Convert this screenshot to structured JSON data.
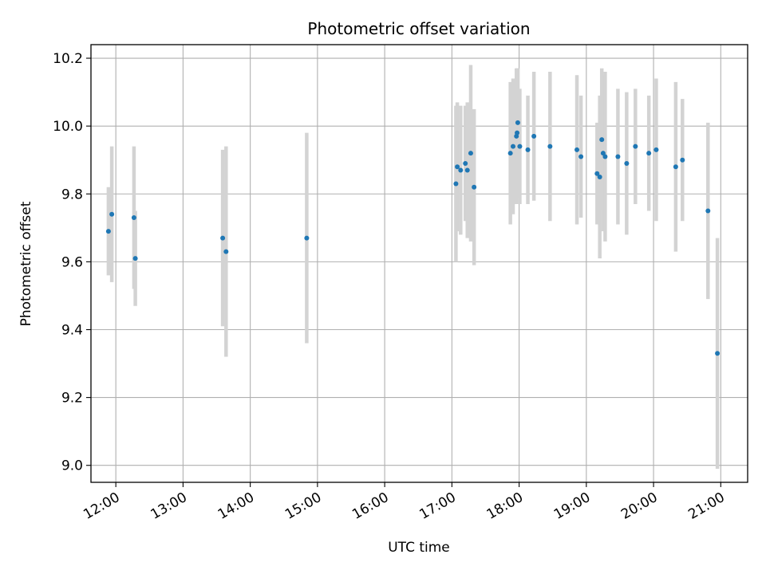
{
  "chart_data": {
    "type": "scatter",
    "title": "Photometric offset variation",
    "xlabel": "UTC time",
    "ylabel": "Photometric offset",
    "xlim": [
      11.63,
      21.4
    ],
    "ylim": [
      8.95,
      10.24
    ],
    "grid": true,
    "x_ticks": [
      {
        "value": 12,
        "label": "12:00"
      },
      {
        "value": 13,
        "label": "13:00"
      },
      {
        "value": 14,
        "label": "14:00"
      },
      {
        "value": 15,
        "label": "15:00"
      },
      {
        "value": 16,
        "label": "16:00"
      },
      {
        "value": 17,
        "label": "17:00"
      },
      {
        "value": 18,
        "label": "18:00"
      },
      {
        "value": 19,
        "label": "19:00"
      },
      {
        "value": 20,
        "label": "20:00"
      },
      {
        "value": 21,
        "label": "21:00"
      }
    ],
    "y_ticks": [
      {
        "value": 9.0,
        "label": "9.0"
      },
      {
        "value": 9.2,
        "label": "9.2"
      },
      {
        "value": 9.4,
        "label": "9.4"
      },
      {
        "value": 9.6,
        "label": "9.6"
      },
      {
        "value": 9.8,
        "label": "9.8"
      },
      {
        "value": 10.0,
        "label": "10.0"
      },
      {
        "value": 10.2,
        "label": "10.2"
      }
    ],
    "colors": {
      "point": "#1f77b4",
      "errorbar": "#d3d3d3",
      "grid": "#b0b0b0"
    },
    "points": [
      {
        "x": 11.89,
        "y": 9.69,
        "err": 0.13
      },
      {
        "x": 11.94,
        "y": 9.74,
        "err": 0.2
      },
      {
        "x": 12.27,
        "y": 9.73,
        "err": 0.21
      },
      {
        "x": 12.29,
        "y": 9.61,
        "err": 0.14
      },
      {
        "x": 13.59,
        "y": 9.67,
        "err": 0.26
      },
      {
        "x": 13.64,
        "y": 9.63,
        "err": 0.31
      },
      {
        "x": 14.84,
        "y": 9.67,
        "err": 0.31
      },
      {
        "x": 17.06,
        "y": 9.83,
        "err": 0.23
      },
      {
        "x": 17.08,
        "y": 9.88,
        "err": 0.19
      },
      {
        "x": 17.13,
        "y": 9.87,
        "err": 0.19
      },
      {
        "x": 17.2,
        "y": 9.89,
        "err": 0.17
      },
      {
        "x": 17.23,
        "y": 9.87,
        "err": 0.2
      },
      {
        "x": 17.28,
        "y": 9.92,
        "err": 0.26
      },
      {
        "x": 17.33,
        "y": 9.82,
        "err": 0.23
      },
      {
        "x": 17.87,
        "y": 9.92,
        "err": 0.21
      },
      {
        "x": 17.91,
        "y": 9.94,
        "err": 0.2
      },
      {
        "x": 17.96,
        "y": 9.97,
        "err": 0.2
      },
      {
        "x": 17.97,
        "y": 9.98,
        "err": 0.19
      },
      {
        "x": 17.98,
        "y": 10.01,
        "err": 0.16
      },
      {
        "x": 18.01,
        "y": 9.94,
        "err": 0.17
      },
      {
        "x": 18.13,
        "y": 9.93,
        "err": 0.16
      },
      {
        "x": 18.22,
        "y": 9.97,
        "err": 0.19
      },
      {
        "x": 18.46,
        "y": 9.94,
        "err": 0.22
      },
      {
        "x": 18.86,
        "y": 9.93,
        "err": 0.22
      },
      {
        "x": 18.92,
        "y": 9.91,
        "err": 0.18
      },
      {
        "x": 19.16,
        "y": 9.86,
        "err": 0.15
      },
      {
        "x": 19.2,
        "y": 9.85,
        "err": 0.24
      },
      {
        "x": 19.23,
        "y": 9.96,
        "err": 0.21
      },
      {
        "x": 19.25,
        "y": 9.92,
        "err": 0.23
      },
      {
        "x": 19.28,
        "y": 9.91,
        "err": 0.25
      },
      {
        "x": 19.47,
        "y": 9.91,
        "err": 0.2
      },
      {
        "x": 19.6,
        "y": 9.89,
        "err": 0.21
      },
      {
        "x": 19.73,
        "y": 9.94,
        "err": 0.17
      },
      {
        "x": 19.93,
        "y": 9.92,
        "err": 0.17
      },
      {
        "x": 20.04,
        "y": 9.93,
        "err": 0.21
      },
      {
        "x": 20.33,
        "y": 9.88,
        "err": 0.25
      },
      {
        "x": 20.43,
        "y": 9.9,
        "err": 0.18
      },
      {
        "x": 20.81,
        "y": 9.75,
        "err": 0.26
      },
      {
        "x": 20.95,
        "y": 9.33,
        "err": 0.34
      }
    ]
  }
}
